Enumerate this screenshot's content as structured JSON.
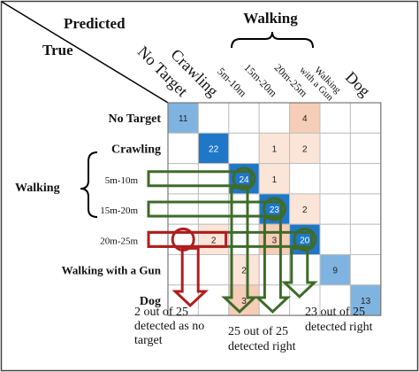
{
  "header": {
    "predicted_label": "Predicted",
    "true_label": "True",
    "walking_group_label": "Walking"
  },
  "columns": [
    {
      "label": "No Target",
      "lines": [
        "No Target"
      ]
    },
    {
      "label": "Crawling",
      "lines": [
        "Crawling"
      ]
    },
    {
      "label": "5m-10m",
      "lines": [
        "5m-10m"
      ]
    },
    {
      "label": "15m-20m",
      "lines": [
        "15m-20m"
      ]
    },
    {
      "label": "20m-25m",
      "lines": [
        "20m-25m"
      ]
    },
    {
      "label": "Walking with a Gun",
      "lines": [
        "Walking",
        "with a Gun"
      ]
    },
    {
      "label": "Dog",
      "lines": [
        "Dog"
      ]
    }
  ],
  "rows": [
    {
      "label": "No Target"
    },
    {
      "label": "Crawling"
    },
    {
      "label": "5m-10m"
    },
    {
      "label": "15m-20m"
    },
    {
      "label": "20m-25m"
    },
    {
      "label": "Walking with a Gun"
    },
    {
      "label": "Dog"
    }
  ],
  "walking_row_group_label": "Walking",
  "matrix": [
    [
      11,
      0,
      0,
      0,
      4,
      0,
      0
    ],
    [
      0,
      22,
      0,
      1,
      2,
      0,
      0
    ],
    [
      0,
      0,
      24,
      1,
      0,
      0,
      0
    ],
    [
      0,
      0,
      0,
      23,
      2,
      0,
      0
    ],
    [
      0,
      2,
      0,
      3,
      20,
      0,
      0
    ],
    [
      0,
      0,
      2,
      0,
      0,
      9,
      0
    ],
    [
      0,
      0,
      3,
      0,
      0,
      0,
      13
    ]
  ],
  "colors": {
    "diag_strong": "#1f77c8",
    "diag_light": "#7fb4e0",
    "off_light": "#fbe4d8",
    "off_mid": "#f6cdb6",
    "grid": "#bfbfbf",
    "green": "#3e6b2a",
    "red": "#b01e1e"
  },
  "annotations": {
    "red": [
      "2 out of 25",
      "detected as no",
      "target"
    ],
    "green_middle": [
      "25 out of 25",
      "detected right"
    ],
    "green_right": [
      "23 out of 25",
      "detected right"
    ]
  }
}
